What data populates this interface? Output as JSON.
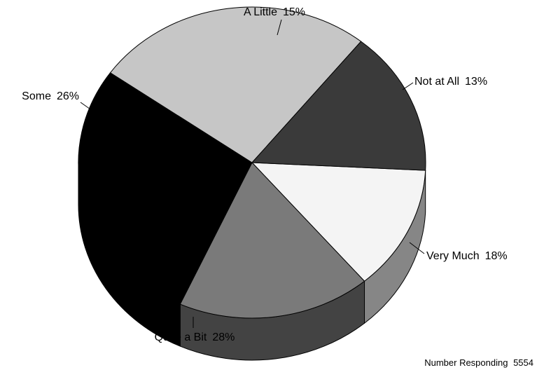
{
  "chart_data": {
    "type": "pie",
    "style": "3d",
    "slices": [
      {
        "label": "Not at All",
        "percent_text": "13%",
        "value": 13,
        "color": "#f4f4f4"
      },
      {
        "label": "Very Much",
        "percent_text": "18%",
        "value": 18,
        "color": "#7a7a7a"
      },
      {
        "label": "Quite a Bit",
        "percent_text": "28%",
        "value": 28,
        "color": "#000000"
      },
      {
        "label": "Some",
        "percent_text": "26%",
        "value": 26,
        "color": "#c6c6c6"
      },
      {
        "label": "A Little",
        "percent_text": "15%",
        "value": 15,
        "color": "#3a3a3a"
      }
    ]
  },
  "footnote": {
    "label": "Number Responding",
    "count": "5554"
  }
}
